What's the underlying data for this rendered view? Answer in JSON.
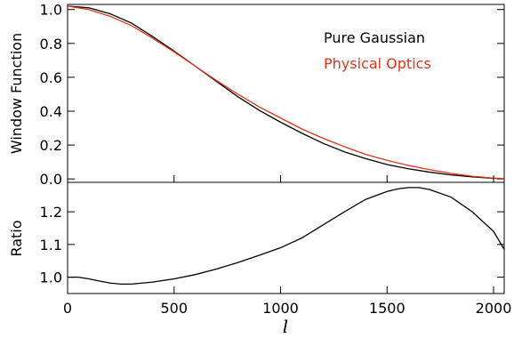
{
  "chart_data": [
    {
      "type": "line",
      "ylabel": "Window Function",
      "xlim": [
        0,
        2050
      ],
      "ylim": [
        -0.02,
        1.03
      ],
      "yticks": [
        0.0,
        0.2,
        0.4,
        0.6,
        0.8,
        1.0
      ],
      "ytick_labels": [
        "0.0",
        "0.2",
        "0.4",
        "0.6",
        "0.8",
        "1.0"
      ],
      "legend_position": "top-right",
      "grid": false,
      "series": [
        {
          "name": "Pure Gaussian",
          "color": "#000000",
          "x": [
            0,
            100,
            200,
            300,
            400,
            500,
            600,
            700,
            800,
            900,
            1000,
            1100,
            1200,
            1300,
            1400,
            1500,
            1600,
            1700,
            1800,
            1900,
            2000,
            2050
          ],
          "y": [
            1.02,
            1.01,
            0.975,
            0.92,
            0.84,
            0.755,
            0.665,
            0.575,
            0.485,
            0.405,
            0.335,
            0.27,
            0.21,
            0.16,
            0.12,
            0.085,
            0.06,
            0.04,
            0.024,
            0.012,
            0.004,
            0.002
          ]
        },
        {
          "name": "Physical Optics",
          "color": "#e0341a",
          "x": [
            0,
            100,
            200,
            300,
            400,
            500,
            600,
            700,
            800,
            900,
            1000,
            1100,
            1200,
            1300,
            1400,
            1500,
            1600,
            1700,
            1800,
            1900,
            2000,
            2050
          ],
          "y": [
            1.02,
            1.0,
            0.96,
            0.905,
            0.83,
            0.75,
            0.665,
            0.58,
            0.5,
            0.425,
            0.36,
            0.295,
            0.24,
            0.19,
            0.145,
            0.11,
            0.08,
            0.055,
            0.033,
            0.016,
            0.005,
            0.002
          ]
        }
      ]
    },
    {
      "type": "line",
      "xlabel": "l",
      "ylabel": "Ratio",
      "xlim": [
        0,
        2050
      ],
      "ylim": [
        0.95,
        1.29
      ],
      "xticks": [
        0,
        500,
        1000,
        1500,
        2000
      ],
      "xtick_labels": [
        "0",
        "500",
        "1000",
        "1500",
        "2000"
      ],
      "yticks": [
        1.0,
        1.1,
        1.2
      ],
      "ytick_labels": [
        "1.0",
        "1.1",
        "1.2"
      ],
      "grid": false,
      "series": [
        {
          "color": "#000000",
          "x": [
            0,
            50,
            100,
            150,
            200,
            250,
            300,
            400,
            500,
            600,
            700,
            800,
            900,
            1000,
            1100,
            1200,
            1300,
            1400,
            1500,
            1550,
            1600,
            1650,
            1700,
            1800,
            1900,
            2000,
            2050
          ],
          "y": [
            1.0,
            1.0,
            0.995,
            0.988,
            0.982,
            0.979,
            0.979,
            0.985,
            0.995,
            1.008,
            1.025,
            1.045,
            1.067,
            1.09,
            1.12,
            1.16,
            1.2,
            1.238,
            1.262,
            1.27,
            1.274,
            1.274,
            1.268,
            1.245,
            1.2,
            1.14,
            1.085
          ]
        }
      ]
    }
  ]
}
